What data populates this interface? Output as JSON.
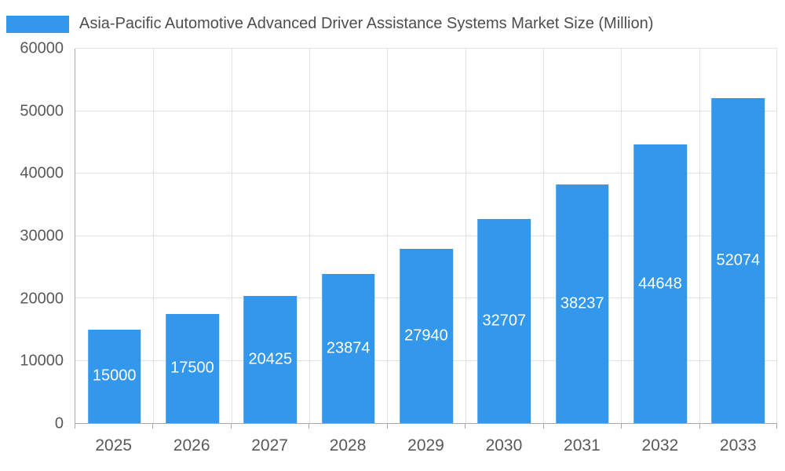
{
  "chart_data": {
    "type": "bar",
    "title": "Asia-Pacific Automotive Advanced Driver Assistance Systems Market Size (Million)",
    "categories": [
      "2025",
      "2026",
      "2027",
      "2028",
      "2029",
      "2030",
      "2031",
      "2032",
      "2033"
    ],
    "values": [
      15000,
      17500,
      20425,
      23874,
      27940,
      32707,
      38237,
      44648,
      52074
    ],
    "xlabel": "",
    "ylabel": "",
    "ylim": [
      0,
      60000
    ],
    "yticks": [
      0,
      10000,
      20000,
      30000,
      40000,
      50000,
      60000
    ],
    "grid": true,
    "legend_position": "top-left",
    "bar_color": "#3398EC",
    "bar_label_color": "#ffffff",
    "value_labels_position": "inside-center"
  }
}
